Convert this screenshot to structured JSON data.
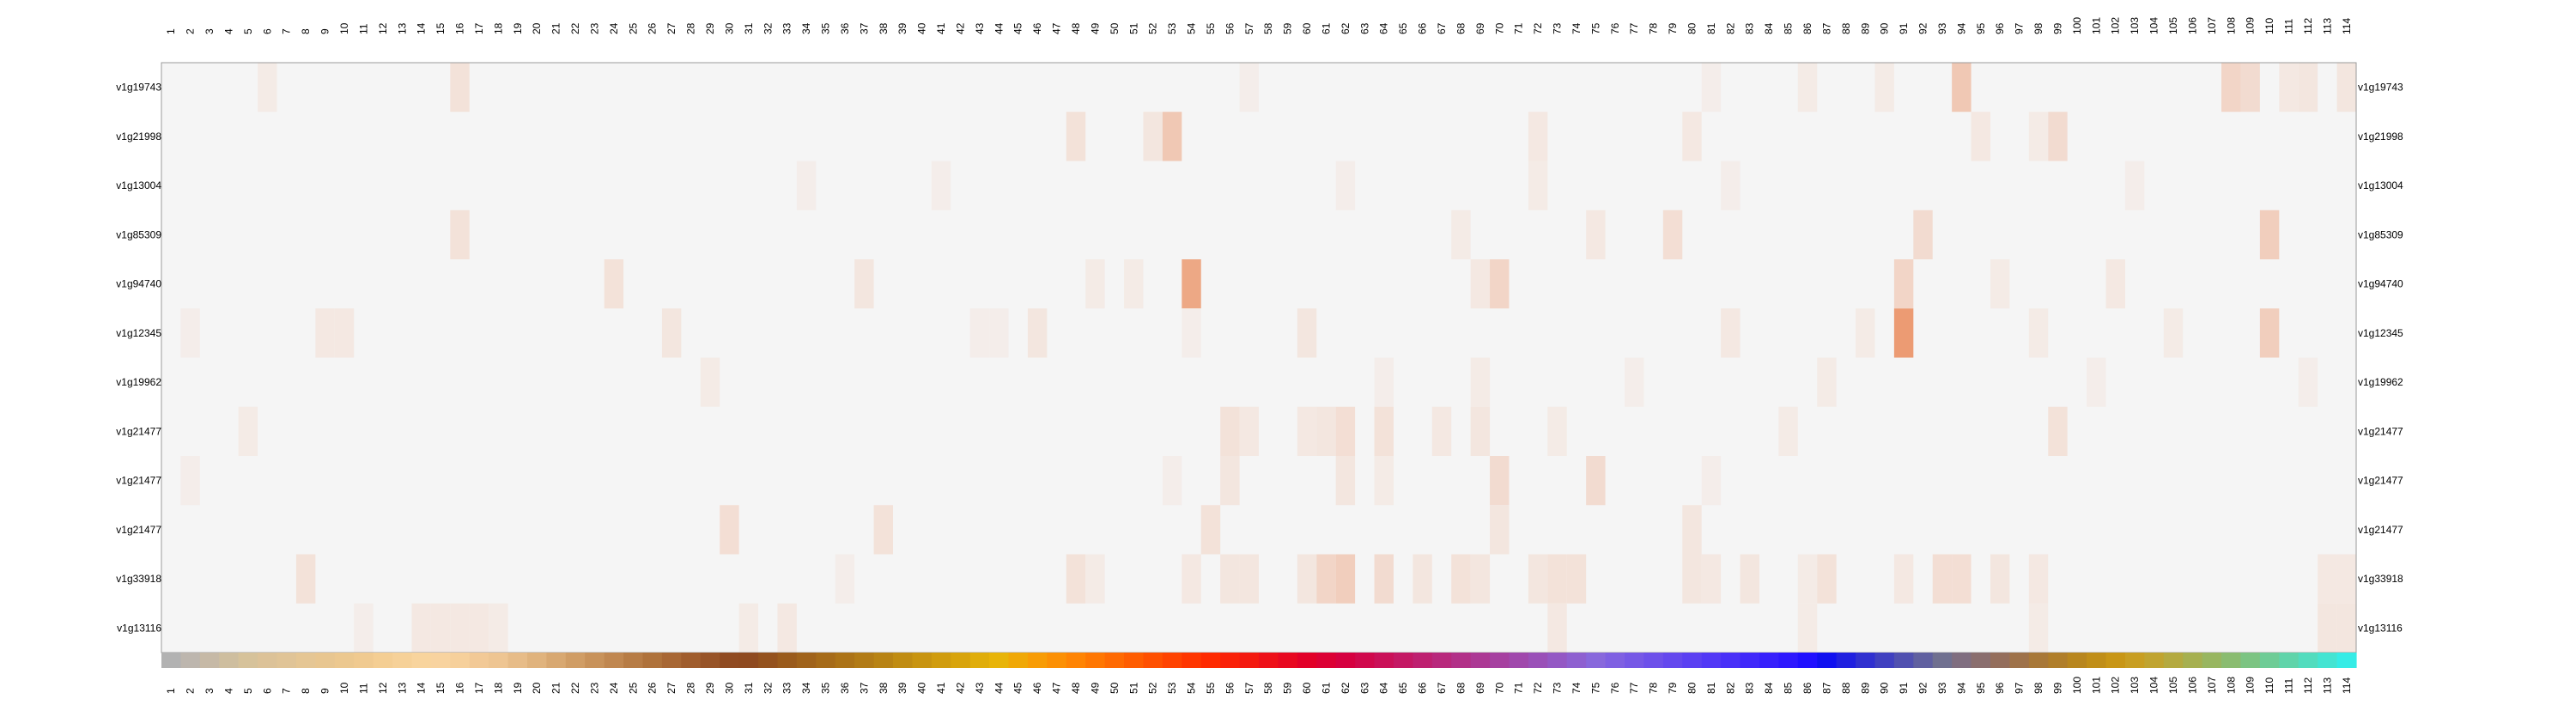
{
  "chart_data": {
    "type": "heatmap",
    "columns": [
      "1",
      "2",
      "3",
      "4",
      "5",
      "6",
      "7",
      "8",
      "9",
      "10",
      "11",
      "12",
      "13",
      "14",
      "15",
      "16",
      "17",
      "18",
      "19",
      "20",
      "21",
      "22",
      "23",
      "24",
      "25",
      "26",
      "27",
      "28",
      "29",
      "30",
      "31",
      "32",
      "33",
      "34",
      "35",
      "36",
      "37",
      "38",
      "39",
      "40",
      "41",
      "42",
      "43",
      "44",
      "45",
      "46",
      "47",
      "48",
      "49",
      "50",
      "51",
      "52",
      "53",
      "54",
      "55",
      "56",
      "57",
      "58",
      "59",
      "60",
      "61",
      "62",
      "63",
      "64",
      "65",
      "66",
      "67",
      "68",
      "69",
      "70",
      "71",
      "72",
      "73",
      "74",
      "75",
      "76",
      "77",
      "78",
      "79",
      "80",
      "81",
      "82",
      "83",
      "84",
      "85",
      "86",
      "87",
      "88",
      "89",
      "90",
      "91",
      "92",
      "93",
      "94",
      "95",
      "96",
      "97",
      "98",
      "99",
      "100",
      "101",
      "102",
      "103",
      "104",
      "105",
      "106",
      "107",
      "108",
      "109",
      "110",
      "111",
      "112",
      "113",
      "114"
    ],
    "rows": [
      "v1g19743",
      "v1g21998",
      "v1g13004",
      "v1g85309",
      "v1g94740",
      "v1g12345",
      "v1g19962",
      "v1g21477",
      "v1g21477",
      "v1g21477",
      "v1g33918",
      "v1g13116"
    ],
    "background_color": "#f5f5f5",
    "high_color": "#e8743b",
    "cells": [
      [
        0,
        5,
        0.08
      ],
      [
        0,
        15,
        0.15
      ],
      [
        0,
        56,
        0.06
      ],
      [
        0,
        80,
        0.06
      ],
      [
        0,
        85,
        0.08
      ],
      [
        0,
        89,
        0.08
      ],
      [
        0,
        93,
        0.35
      ],
      [
        0,
        107,
        0.25
      ],
      [
        0,
        108,
        0.2
      ],
      [
        0,
        110,
        0.1
      ],
      [
        0,
        111,
        0.12
      ],
      [
        0,
        113,
        0.12
      ],
      [
        1,
        47,
        0.15
      ],
      [
        1,
        51,
        0.12
      ],
      [
        1,
        52,
        0.35
      ],
      [
        1,
        71,
        0.1
      ],
      [
        1,
        79,
        0.1
      ],
      [
        1,
        94,
        0.1
      ],
      [
        1,
        97,
        0.08
      ],
      [
        1,
        98,
        0.2
      ],
      [
        2,
        33,
        0.06
      ],
      [
        2,
        40,
        0.06
      ],
      [
        2,
        61,
        0.06
      ],
      [
        2,
        71,
        0.08
      ],
      [
        2,
        81,
        0.06
      ],
      [
        2,
        102,
        0.06
      ],
      [
        3,
        15,
        0.15
      ],
      [
        3,
        67,
        0.08
      ],
      [
        3,
        74,
        0.1
      ],
      [
        3,
        78,
        0.18
      ],
      [
        3,
        91,
        0.2
      ],
      [
        3,
        109,
        0.3
      ],
      [
        4,
        23,
        0.15
      ],
      [
        4,
        36,
        0.12
      ],
      [
        4,
        48,
        0.08
      ],
      [
        4,
        50,
        0.08
      ],
      [
        4,
        53,
        0.6
      ],
      [
        4,
        68,
        0.1
      ],
      [
        4,
        69,
        0.25
      ],
      [
        4,
        90,
        0.25
      ],
      [
        4,
        95,
        0.08
      ],
      [
        4,
        101,
        0.1
      ],
      [
        5,
        1,
        0.06
      ],
      [
        5,
        8,
        0.1
      ],
      [
        5,
        9,
        0.1
      ],
      [
        5,
        26,
        0.12
      ],
      [
        5,
        42,
        0.06
      ],
      [
        5,
        43,
        0.06
      ],
      [
        5,
        45,
        0.12
      ],
      [
        5,
        53,
        0.06
      ],
      [
        5,
        59,
        0.12
      ],
      [
        5,
        81,
        0.1
      ],
      [
        5,
        88,
        0.08
      ],
      [
        5,
        90,
        0.7
      ],
      [
        5,
        97,
        0.08
      ],
      [
        5,
        104,
        0.08
      ],
      [
        5,
        109,
        0.3
      ],
      [
        6,
        28,
        0.08
      ],
      [
        6,
        63,
        0.06
      ],
      [
        6,
        68,
        0.08
      ],
      [
        6,
        76,
        0.06
      ],
      [
        6,
        86,
        0.08
      ],
      [
        6,
        100,
        0.06
      ],
      [
        6,
        111,
        0.06
      ],
      [
        7,
        4,
        0.08
      ],
      [
        7,
        55,
        0.15
      ],
      [
        7,
        56,
        0.1
      ],
      [
        7,
        59,
        0.1
      ],
      [
        7,
        60,
        0.12
      ],
      [
        7,
        61,
        0.18
      ],
      [
        7,
        63,
        0.15
      ],
      [
        7,
        66,
        0.1
      ],
      [
        7,
        68,
        0.12
      ],
      [
        7,
        72,
        0.08
      ],
      [
        7,
        84,
        0.08
      ],
      [
        7,
        98,
        0.15
      ],
      [
        8,
        1,
        0.06
      ],
      [
        8,
        52,
        0.06
      ],
      [
        8,
        55,
        0.12
      ],
      [
        8,
        61,
        0.12
      ],
      [
        8,
        63,
        0.08
      ],
      [
        8,
        69,
        0.2
      ],
      [
        8,
        74,
        0.2
      ],
      [
        8,
        80,
        0.06
      ],
      [
        9,
        29,
        0.18
      ],
      [
        9,
        37,
        0.15
      ],
      [
        9,
        54,
        0.15
      ],
      [
        9,
        69,
        0.12
      ],
      [
        9,
        79,
        0.12
      ],
      [
        10,
        7,
        0.15
      ],
      [
        10,
        35,
        0.06
      ],
      [
        10,
        47,
        0.15
      ],
      [
        10,
        48,
        0.08
      ],
      [
        10,
        53,
        0.1
      ],
      [
        10,
        55,
        0.12
      ],
      [
        10,
        56,
        0.12
      ],
      [
        10,
        59,
        0.12
      ],
      [
        10,
        60,
        0.25
      ],
      [
        10,
        61,
        0.3
      ],
      [
        10,
        63,
        0.2
      ],
      [
        10,
        65,
        0.12
      ],
      [
        10,
        67,
        0.15
      ],
      [
        10,
        68,
        0.12
      ],
      [
        10,
        71,
        0.12
      ],
      [
        10,
        72,
        0.15
      ],
      [
        10,
        73,
        0.15
      ],
      [
        10,
        79,
        0.12
      ],
      [
        10,
        80,
        0.1
      ],
      [
        10,
        82,
        0.12
      ],
      [
        10,
        85,
        0.08
      ],
      [
        10,
        86,
        0.15
      ],
      [
        10,
        90,
        0.1
      ],
      [
        10,
        92,
        0.18
      ],
      [
        10,
        93,
        0.18
      ],
      [
        10,
        95,
        0.12
      ],
      [
        10,
        97,
        0.1
      ],
      [
        10,
        112,
        0.1
      ],
      [
        10,
        113,
        0.1
      ],
      [
        11,
        10,
        0.06
      ],
      [
        11,
        13,
        0.1
      ],
      [
        11,
        14,
        0.1
      ],
      [
        11,
        15,
        0.1
      ],
      [
        11,
        16,
        0.1
      ],
      [
        11,
        17,
        0.08
      ],
      [
        11,
        30,
        0.08
      ],
      [
        11,
        32,
        0.1
      ],
      [
        11,
        72,
        0.1
      ],
      [
        11,
        85,
        0.08
      ],
      [
        11,
        97,
        0.08
      ],
      [
        11,
        112,
        0.12
      ],
      [
        11,
        113,
        0.12
      ]
    ],
    "color_bar": [
      "#b2b2b2",
      "#bdb6ae",
      "#c6b9a6",
      "#cebe9f",
      "#d6c29a",
      "#dcc298",
      "#e0c497",
      "#e5c694",
      "#e8c690",
      "#ecc88f",
      "#f0ca90",
      "#f4ce93",
      "#f6d198",
      "#f8d49d",
      "#f8d39f",
      "#f6d09b",
      "#f2c996",
      "#eec592",
      "#e7bc88",
      "#e0b37d",
      "#d8a871",
      "#d09d65",
      "#c8925a",
      "#c08750",
      "#b77c45",
      "#af723b",
      "#a86734",
      "#a05d2d",
      "#985428",
      "#904b22",
      "#8f4a20",
      "#94521e",
      "#9a5b1c",
      "#a0631b",
      "#a66b19",
      "#ac7317",
      "#b27b16",
      "#b88314",
      "#c08c12",
      "#c89410",
      "#d09c0e",
      "#d8a40c",
      "#e0ad0a",
      "#e8b408",
      "#f0a806",
      "#f89c05",
      "#fc9004",
      "#ff8403",
      "#ff7702",
      "#ff6a02",
      "#ff5d01",
      "#ff5001",
      "#ff4301",
      "#ff3600",
      "#ff2a00",
      "#fa2108",
      "#f4190f",
      "#ee1018",
      "#e80820",
      "#e20028",
      "#dc0034",
      "#d60040",
      "#d0084c",
      "#ca1058",
      "#c41864",
      "#be2070",
      "#b8287c",
      "#b23088",
      "#ac3894",
      "#a640a0",
      "#a048ac",
      "#9a50b8",
      "#9458c4",
      "#8e60d0",
      "#8868dc",
      "#7f60e2",
      "#7658e6",
      "#6d50ea",
      "#6448ee",
      "#5b40f2",
      "#5238f6",
      "#4930f8",
      "#4028fa",
      "#3720fc",
      "#2e18fe",
      "#2010ff",
      "#1010f0",
      "#2020e0",
      "#3030d0",
      "#4040c0",
      "#5050b0",
      "#6060a0",
      "#707090",
      "#806e80",
      "#8a6e6e",
      "#946e5c",
      "#9e724a",
      "#a87838",
      "#b07e2a",
      "#b8861e",
      "#c08e18",
      "#c89616",
      "#c89e22",
      "#c0a430",
      "#b4aa40",
      "#a6b050",
      "#98b660",
      "#8abc70",
      "#7cc482",
      "#6ecc96",
      "#60d4aa",
      "#52dcbe",
      "#44e4d2",
      "#36ece6"
    ]
  }
}
